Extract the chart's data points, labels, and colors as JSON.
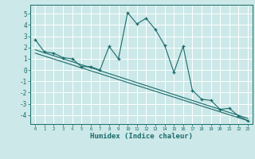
{
  "xlabel": "Humidex (Indice chaleur)",
  "ylabel": "",
  "bg_color": "#cce8e8",
  "grid_color": "#ffffff",
  "line_color": "#1a6b6b",
  "xlim": [
    -0.5,
    23.5
  ],
  "ylim": [
    -4.8,
    5.8
  ],
  "xticks": [
    0,
    1,
    2,
    3,
    4,
    5,
    6,
    7,
    8,
    9,
    10,
    11,
    12,
    13,
    14,
    15,
    16,
    17,
    18,
    19,
    20,
    21,
    22,
    23
  ],
  "yticks": [
    -4,
    -3,
    -2,
    -1,
    0,
    1,
    2,
    3,
    4,
    5
  ],
  "main_x": [
    0,
    1,
    2,
    3,
    4,
    5,
    6,
    7,
    8,
    9,
    10,
    11,
    12,
    13,
    14,
    15,
    16,
    17,
    18,
    19,
    20,
    21,
    22,
    23
  ],
  "main_y": [
    2.7,
    1.6,
    1.5,
    1.1,
    1.0,
    0.3,
    0.3,
    0.0,
    2.1,
    1.0,
    5.1,
    4.1,
    4.6,
    3.6,
    2.2,
    -0.2,
    2.1,
    -1.8,
    -2.6,
    -2.7,
    -3.5,
    -3.4,
    -4.1,
    -4.5
  ],
  "line2_x": [
    0,
    23
  ],
  "line2_y": [
    1.8,
    -4.3
  ],
  "line3_x": [
    0,
    23
  ],
  "line3_y": [
    1.5,
    -4.5
  ]
}
